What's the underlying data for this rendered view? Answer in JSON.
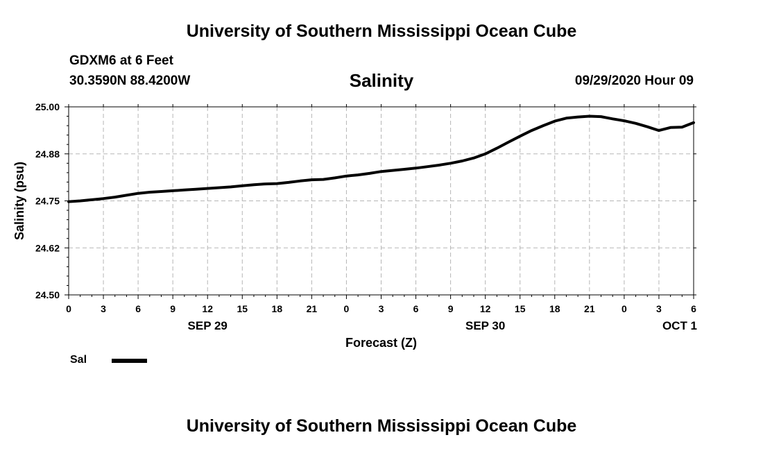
{
  "header": {
    "title": "University of Southern Mississippi Ocean Cube",
    "station": "GDXM6 at 6 Feet",
    "coordinates": "30.3590N 88.4200W",
    "timestamp": "09/29/2020 Hour 09"
  },
  "footer": {
    "title": "University of Southern Mississippi Ocean Cube"
  },
  "legend": {
    "items": [
      {
        "label": "Sal",
        "color": "#000000"
      }
    ]
  },
  "chart_data": {
    "type": "line",
    "title": "Salinity",
    "xlabel": "Forecast (Z)",
    "ylabel": "Salinity (psu)",
    "ylim": [
      24.5,
      25.0
    ],
    "xlim": [
      0,
      54
    ],
    "x_unit": "hours from 2020-09-29 00Z",
    "yticks": [
      "24.50",
      "24.62",
      "24.75",
      "24.88",
      "25.00"
    ],
    "yticks_values": [
      24.5,
      24.625,
      24.75,
      24.875,
      25.0
    ],
    "xticks": [
      "0",
      "3",
      "6",
      "9",
      "12",
      "15",
      "18",
      "21",
      "0",
      "3",
      "6",
      "9",
      "12",
      "15",
      "18",
      "21",
      "0",
      "3",
      "6"
    ],
    "date_labels": [
      {
        "label": "SEP 29",
        "x": 12
      },
      {
        "label": "SEP 30",
        "x": 36
      },
      {
        "label": "OCT 1",
        "x": 52.8
      }
    ],
    "grid": true,
    "legend_position": "bottom-left",
    "series": [
      {
        "name": "Sal",
        "color": "#000000",
        "x": [
          0,
          1,
          2,
          3,
          4,
          5,
          6,
          7,
          8,
          9,
          10,
          11,
          12,
          13,
          14,
          15,
          16,
          17,
          18,
          19,
          20,
          21,
          22,
          23,
          24,
          25,
          26,
          27,
          28,
          29,
          30,
          31,
          32,
          33,
          34,
          35,
          36,
          37,
          38,
          39,
          40,
          41,
          42,
          43,
          44,
          45,
          46,
          47,
          48,
          49,
          50,
          51,
          52,
          53,
          54
        ],
        "y": [
          24.748,
          24.75,
          24.753,
          24.756,
          24.76,
          24.765,
          24.77,
          24.773,
          24.775,
          24.777,
          24.779,
          24.781,
          24.783,
          24.785,
          24.787,
          24.79,
          24.793,
          24.795,
          24.796,
          24.799,
          24.803,
          24.806,
          24.807,
          24.811,
          24.816,
          24.819,
          24.823,
          24.828,
          24.831,
          24.834,
          24.837,
          24.841,
          24.845,
          24.85,
          24.856,
          24.864,
          24.875,
          24.89,
          24.906,
          24.922,
          24.937,
          24.95,
          24.962,
          24.97,
          24.973,
          24.975,
          24.974,
          24.968,
          24.963,
          24.956,
          24.947,
          24.937,
          24.945,
          24.946,
          24.958
        ]
      }
    ]
  }
}
